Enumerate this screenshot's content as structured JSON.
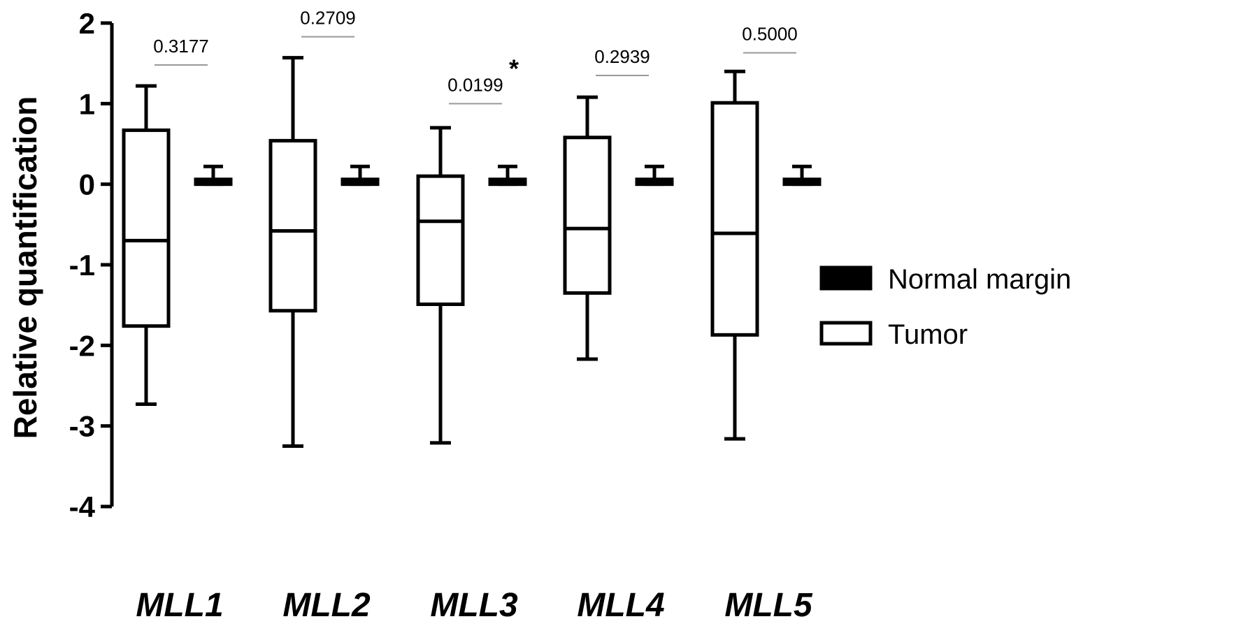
{
  "chart_data": {
    "type": "box",
    "ylabel": "Relative quantification",
    "xlabel": "",
    "ylim": [
      -4,
      2
    ],
    "yticks": [
      2,
      1,
      0,
      -1,
      -2,
      -3,
      -4
    ],
    "ytick_labels": [
      "2",
      "1",
      "0",
      "-1",
      "-2",
      "-3",
      "-4"
    ],
    "categories": [
      "MLL1",
      "MLL2",
      "MLL3",
      "MLL4",
      "MLL5"
    ],
    "legend_position": "right",
    "series": [
      {
        "name": "Tumor",
        "fill": "#ffffff",
        "boxes": [
          {
            "min": -2.73,
            "q1": -1.76,
            "median": -0.7,
            "q3": 0.67,
            "max": 1.22
          },
          {
            "min": -3.25,
            "q1": -1.57,
            "median": -0.58,
            "q3": 0.54,
            "max": 1.57
          },
          {
            "min": -3.21,
            "q1": -1.49,
            "median": -0.46,
            "q3": 0.1,
            "max": 0.7
          },
          {
            "min": -2.17,
            "q1": -1.35,
            "median": -0.55,
            "q3": 0.58,
            "max": 1.08
          },
          {
            "min": -3.16,
            "q1": -1.87,
            "median": -0.61,
            "q3": 1.01,
            "max": 1.4
          }
        ]
      },
      {
        "name": "Normal margin",
        "fill": "#000000",
        "boxes": [
          {
            "min": 0.0,
            "q1": 0.0,
            "median": 0.03,
            "q3": 0.06,
            "max": 0.22
          },
          {
            "min": 0.0,
            "q1": 0.0,
            "median": 0.03,
            "q3": 0.06,
            "max": 0.22
          },
          {
            "min": 0.0,
            "q1": 0.0,
            "median": 0.03,
            "q3": 0.06,
            "max": 0.22
          },
          {
            "min": 0.0,
            "q1": 0.0,
            "median": 0.03,
            "q3": 0.06,
            "max": 0.22
          },
          {
            "min": 0.0,
            "q1": 0.0,
            "median": 0.03,
            "q3": 0.06,
            "max": 0.22
          }
        ]
      }
    ],
    "annotations": [
      {
        "category": "MLL1",
        "text": "0.3177",
        "y": 1.48,
        "star": ""
      },
      {
        "category": "MLL2",
        "text": "0.2709",
        "y": 1.83,
        "star": ""
      },
      {
        "category": "MLL3",
        "text": "0.0199",
        "y": 1.0,
        "star": "*"
      },
      {
        "category": "MLL4",
        "text": "0.2939",
        "y": 1.35,
        "star": ""
      },
      {
        "category": "MLL5",
        "text": "0.5000",
        "y": 1.63,
        "star": ""
      }
    ]
  }
}
